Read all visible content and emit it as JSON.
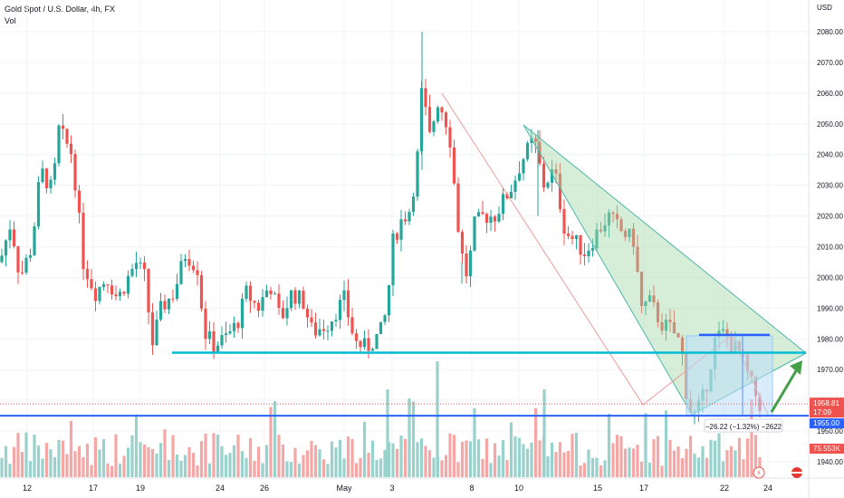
{
  "header": {
    "title": "Gold Spot / U.S. Dollar, 4h, FX",
    "volume_label": "Vol",
    "currency": "USD"
  },
  "price_axis": {
    "ticks": [
      1940,
      1950,
      1960,
      1970,
      1980,
      1990,
      2000,
      2010,
      2020,
      2030,
      2040,
      2050,
      2060,
      2070,
      2080
    ],
    "labels": [
      "1940.00",
      "1950.00",
      "1960.00",
      "1970.00",
      "1980.00",
      "1990.00",
      "2000.00",
      "2010.00",
      "2020.00",
      "2030.00",
      "2040.00",
      "2050.00",
      "2060.00",
      "2070.00",
      "2080.00"
    ]
  },
  "time_axis": {
    "labels": [
      "12",
      "17",
      "19",
      "24",
      "26",
      "May",
      "3",
      "8",
      "10",
      "15",
      "17",
      "22",
      "24"
    ]
  },
  "price_tags": {
    "current_price": "1958.81",
    "countdown": "17:09",
    "support_price": "1955.00",
    "volume_value": "75.553K"
  },
  "measure_label": "−26.22 (−1.32%) −2622",
  "colors": {
    "up": "#26a69a",
    "down": "#ef5350",
    "support_line": "#2962ff",
    "resistance_line": "#00bcd4",
    "triangle_fill": "#a5d6a7",
    "measure_fill": "#bbdefb",
    "arrow": "#43a047"
  },
  "chart_data": {
    "type": "candlestick",
    "symbol": "Gold Spot / U.S. Dollar",
    "timeframe": "4h",
    "price_range": [
      1937,
      2085
    ],
    "levels": {
      "horizontal_support": 1955.0,
      "horizontal_level": 1975.5,
      "current_price": 1958.81
    },
    "pattern": "descending triangle",
    "last_measured_move": {
      "change": -26.22,
      "percent": -1.32
    }
  }
}
